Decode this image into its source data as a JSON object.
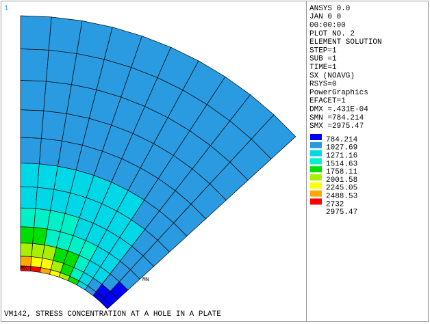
{
  "window_number": "1",
  "info": [
    "ANSYS 0.0",
    "JAN  0   0",
    "00:00:00",
    "PLOT NO.   2",
    "ELEMENT SOLUTION",
    "STEP=1",
    "SUB =1",
    "TIME=1",
    "SX       (NOAVG)",
    "RSYS=0",
    "PowerGraphics",
    "EFACET=1",
    "DMX =.431E-04",
    "SMN =784.214",
    "SMX =2975.47"
  ],
  "legend": {
    "colors": [
      "#0000ff",
      "#2a9be0",
      "#00d8e8",
      "#00f0c8",
      "#00e000",
      "#a8f000",
      "#ffff00",
      "#ffa800",
      "#ff0000"
    ],
    "labels": [
      "784.214",
      "1027.69",
      "1271.16",
      "1514.63",
      "1758.11",
      "2001.58",
      "2245.05",
      "2488.53",
      "2732",
      "2975.47"
    ]
  },
  "markers": {
    "min": "MN",
    "max": "MX"
  },
  "caption": "VM142, STRESS CONCENTRATION AT A HOLE IN A PLATE"
}
